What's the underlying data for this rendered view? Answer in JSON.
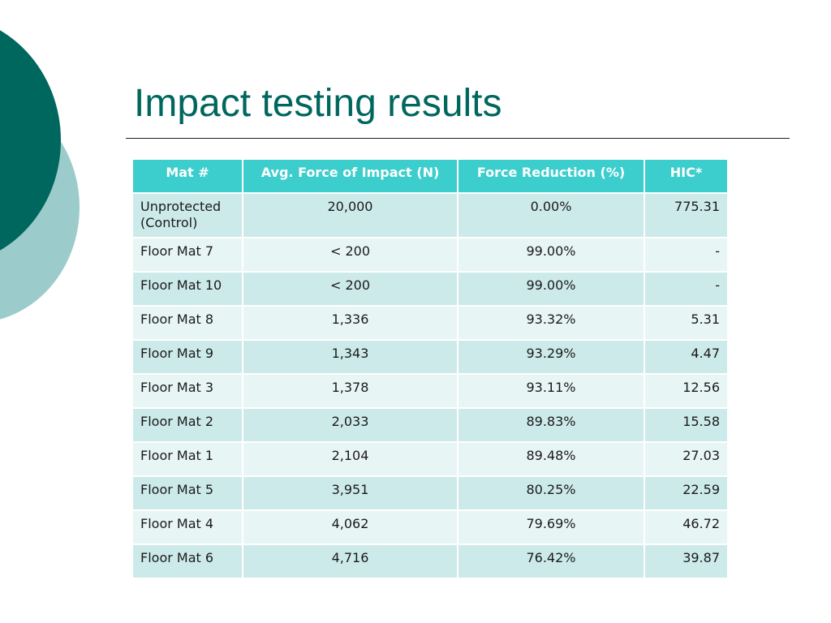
{
  "slide": {
    "title": "Impact testing results"
  },
  "table": {
    "headers": [
      "Mat #",
      "Avg. Force of Impact (N)",
      "Force Reduction (%)",
      "HIC*"
    ],
    "rows": [
      {
        "mat": "Unprotected (Control)",
        "force": "20,000",
        "reduction": "0.00%",
        "hic": "775.31"
      },
      {
        "mat": "Floor Mat 7",
        "force": "< 200",
        "reduction": "99.00%",
        "hic": "-"
      },
      {
        "mat": "Floor Mat 10",
        "force": "< 200",
        "reduction": "99.00%",
        "hic": "-"
      },
      {
        "mat": "Floor Mat 8",
        "force": "1,336",
        "reduction": "93.32%",
        "hic": "5.31"
      },
      {
        "mat": "Floor Mat 9",
        "force": "1,343",
        "reduction": "93.29%",
        "hic": "4.47"
      },
      {
        "mat": "Floor Mat 3",
        "force": "1,378",
        "reduction": "93.11%",
        "hic": "12.56"
      },
      {
        "mat": "Floor Mat 2",
        "force": "2,033",
        "reduction": "89.83%",
        "hic": "15.58"
      },
      {
        "mat": "Floor Mat 1",
        "force": "2,104",
        "reduction": "89.48%",
        "hic": "27.03"
      },
      {
        "mat": "Floor Mat 5",
        "force": "3,951",
        "reduction": "80.25%",
        "hic": "22.59"
      },
      {
        "mat": "Floor Mat 4",
        "force": "4,062",
        "reduction": "79.69%",
        "hic": "46.72"
      },
      {
        "mat": "Floor Mat 6",
        "force": "4,716",
        "reduction": "76.42%",
        "hic": "39.87"
      }
    ]
  },
  "colors": {
    "accent_dark": "#00675f",
    "accent_light": "#9ccbcb",
    "header_bg": "#3ccdcd",
    "row_dark": "#cdeaea",
    "row_light": "#e8f5f5"
  }
}
